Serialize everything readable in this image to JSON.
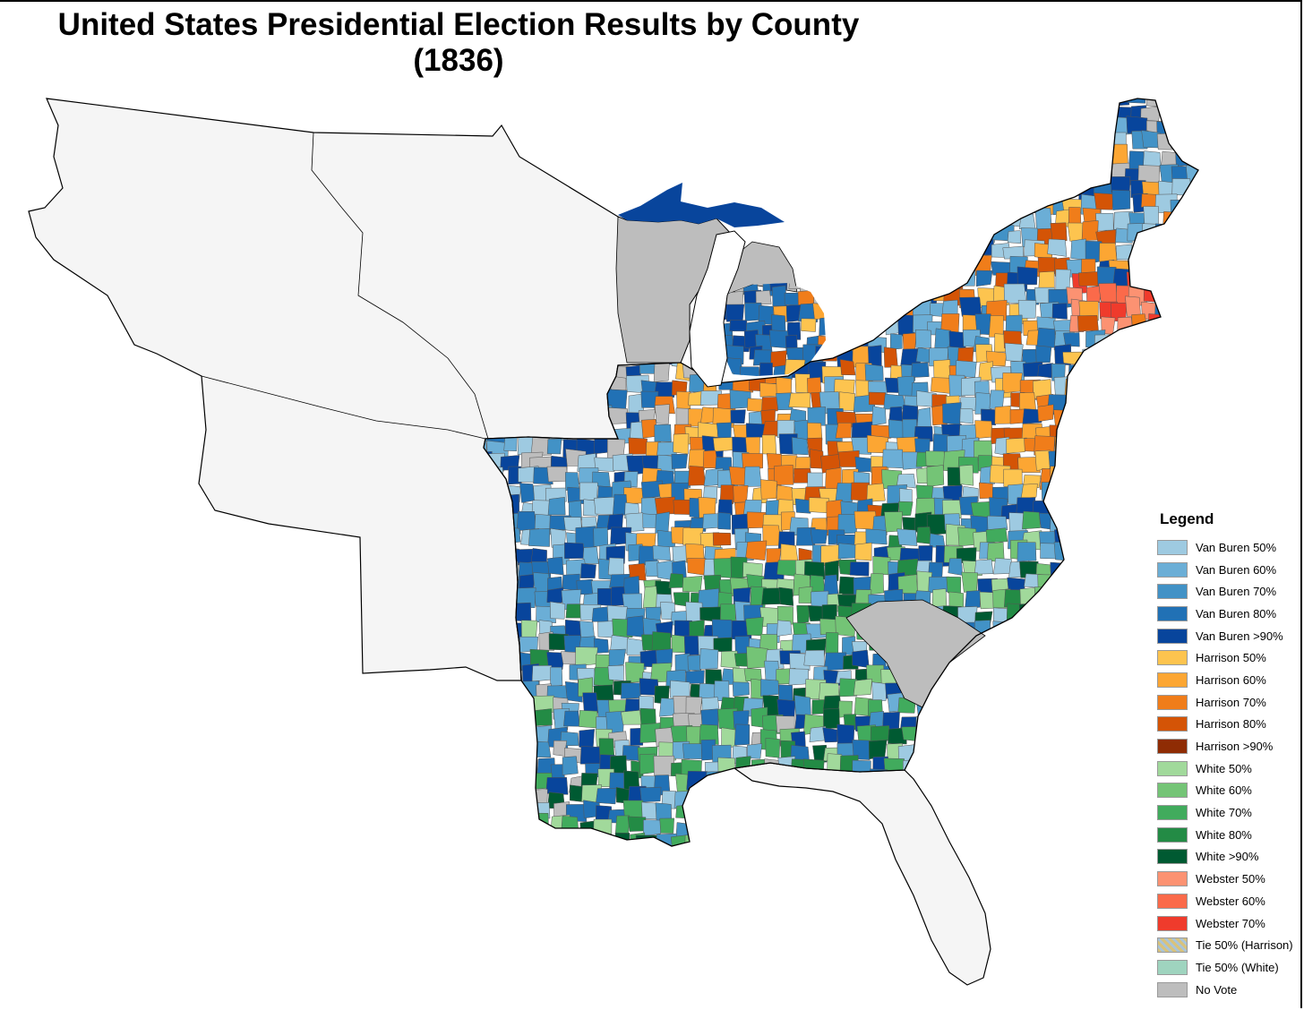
{
  "map": {
    "title_line1": "United States Presidential Election Results by County",
    "title_line2": "(1836)",
    "background_color": "#ffffff",
    "territory_color": "#f5f5f5",
    "no_vote_color": "#bdbdbd",
    "regions": [
      {
        "name": "Van Buren 50%",
        "color": "#9ecae1"
      },
      {
        "name": "Van Buren 60%",
        "color": "#6baed6"
      },
      {
        "name": "Van Buren 70%",
        "color": "#4292c6"
      },
      {
        "name": "Van Buren 80%",
        "color": "#2171b5"
      },
      {
        "name": "Van Buren >90%",
        "color": "#08459c"
      },
      {
        "name": "Harrison 50%",
        "color": "#fdc44f"
      },
      {
        "name": "Harrison 60%",
        "color": "#fca633"
      },
      {
        "name": "Harrison 70%",
        "color": "#f07d1a"
      },
      {
        "name": "Harrison 80%",
        "color": "#d45406"
      },
      {
        "name": "Harrison >90%",
        "color": "#8f2c04"
      },
      {
        "name": "White 50%",
        "color": "#a1d99b"
      },
      {
        "name": "White 60%",
        "color": "#74c476"
      },
      {
        "name": "White 70%",
        "color": "#41ab5d"
      },
      {
        "name": "White 80%",
        "color": "#238b45"
      },
      {
        "name": "White >90%",
        "color": "#005a32"
      },
      {
        "name": "Webster 50%",
        "color": "#fc9272"
      },
      {
        "name": "Webster 60%",
        "color": "#fb6a4a"
      },
      {
        "name": "Webster 70%",
        "color": "#ef3b2c"
      }
    ]
  },
  "legend": {
    "heading": "Legend",
    "items": [
      {
        "label": "Van Buren 50%",
        "color": "#9ecae1"
      },
      {
        "label": "Van Buren 60%",
        "color": "#6baed6"
      },
      {
        "label": "Van Buren 70%",
        "color": "#4292c6"
      },
      {
        "label": "Van Buren 80%",
        "color": "#2171b5"
      },
      {
        "label": "Van Buren >90%",
        "color": "#08459c"
      },
      {
        "label": "Harrison 50%",
        "color": "#fdc44f"
      },
      {
        "label": "Harrison 60%",
        "color": "#fca633"
      },
      {
        "label": "Harrison 70%",
        "color": "#f07d1a"
      },
      {
        "label": "Harrison 80%",
        "color": "#d45406"
      },
      {
        "label": "Harrison >90%",
        "color": "#8f2c04"
      },
      {
        "label": "White 50%",
        "color": "#a1d99b"
      },
      {
        "label": "White 60%",
        "color": "#74c476"
      },
      {
        "label": "White 70%",
        "color": "#41ab5d"
      },
      {
        "label": "White 80%",
        "color": "#238b45"
      },
      {
        "label": "White >90%",
        "color": "#005a32"
      },
      {
        "label": "Webster 50%",
        "color": "#fc9272"
      },
      {
        "label": "Webster 60%",
        "color": "#fb6a4a"
      },
      {
        "label": "Webster 70%",
        "color": "#ef3b2c"
      },
      {
        "label": "Tie 50% (Harrison)",
        "color": "#d4c58a",
        "pattern": "hatched"
      },
      {
        "label": "Tie 50% (White)",
        "color": "#9fd4bf"
      },
      {
        "label": "No Vote",
        "color": "#bdbdbd"
      }
    ]
  }
}
